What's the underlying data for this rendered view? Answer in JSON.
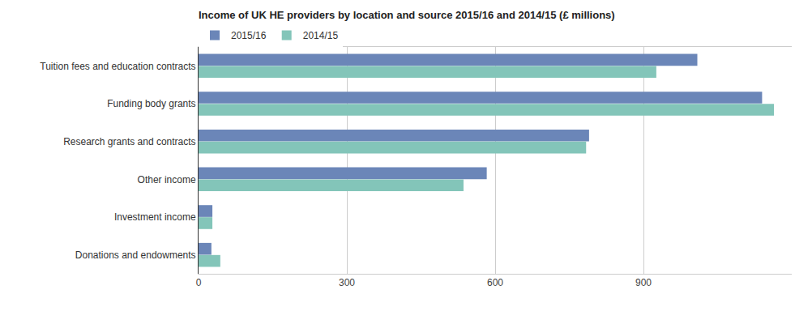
{
  "chart_data": {
    "type": "bar",
    "orientation": "horizontal",
    "title": "Income of UK HE providers by location and source 2015/16 and 2014/15 (£ millions)",
    "categories": [
      "Tuition fees and education contracts",
      "Funding body grants",
      "Research grants and contracts",
      "Other income",
      "Investment income",
      "Donations and endowments"
    ],
    "series": [
      {
        "name": "2015/16",
        "color": "#6b86b8",
        "values": [
          1009,
          1140,
          790,
          583,
          28,
          26
        ]
      },
      {
        "name": "2014/15",
        "color": "#83c5b9",
        "values": [
          926,
          1164,
          784,
          536,
          28,
          44
        ]
      }
    ],
    "xlim": [
      0,
      1200
    ],
    "xticks": [
      0,
      300,
      600,
      900
    ],
    "grid": true,
    "legend": "top-left"
  }
}
